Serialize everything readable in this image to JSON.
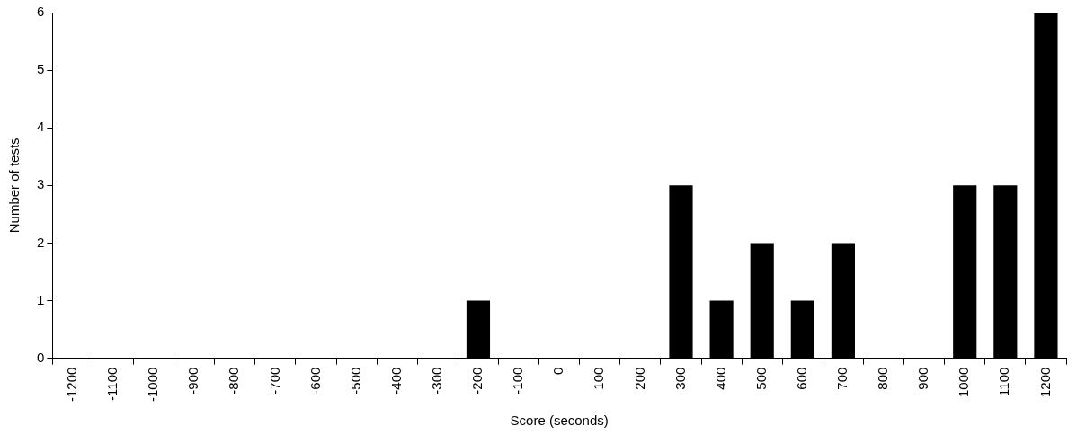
{
  "chart_data": {
    "type": "bar",
    "xlabel": "Score (seconds)",
    "ylabel": "Number of tests",
    "categories": [
      "-1200",
      "-1100",
      "-1000",
      "-900",
      "-800",
      "-700",
      "-600",
      "-500",
      "-400",
      "-300",
      "-200",
      "-100",
      "0",
      "100",
      "200",
      "300",
      "400",
      "500",
      "600",
      "700",
      "800",
      "900",
      "1000",
      "1100",
      "1200"
    ],
    "values": [
      0,
      0,
      0,
      0,
      0,
      0,
      0,
      0,
      0,
      0,
      1,
      0,
      0,
      0,
      0,
      3,
      1,
      2,
      1,
      2,
      0,
      0,
      3,
      3,
      6
    ],
    "color": "#000000",
    "ylim": [
      0,
      6
    ],
    "yticks": [
      0,
      1,
      2,
      3,
      4,
      5,
      6
    ],
    "grid": false,
    "legend": false
  }
}
